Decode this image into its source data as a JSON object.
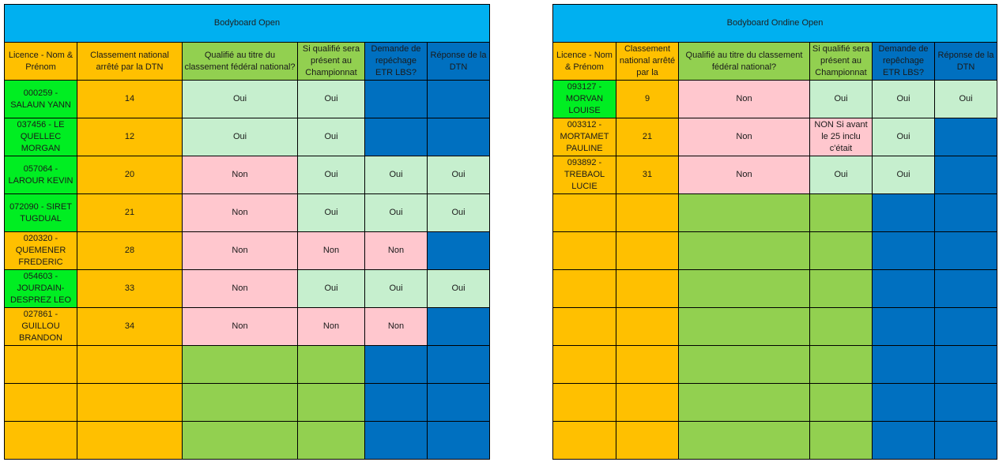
{
  "left": {
    "title": "Bodyboard Open",
    "headers": [
      "Licence - Nom & Prénom",
      "Classement national arrêté par la DTN",
      "Qualifié au titre du classement fédéral national?",
      "Si qualifié sera présent au Championnat",
      "Demande de repéchage ETR LBS?",
      "Réponse de la DTN"
    ],
    "rows": [
      {
        "licence": "000259 - SALAUN YANN",
        "rank": "14",
        "qualified": "Oui",
        "present": "Oui",
        "repechage": "",
        "response": ""
      },
      {
        "licence": "037456 - LE QUELLEC MORGAN",
        "rank": "12",
        "qualified": "Oui",
        "present": "Oui",
        "repechage": "",
        "response": ""
      },
      {
        "licence": "057064 - LAROUR KEVIN",
        "rank": "20",
        "qualified": "Non",
        "present": "Oui",
        "repechage": "Oui",
        "response": "Oui"
      },
      {
        "licence": "072090 - SIRET TUGDUAL",
        "rank": "21",
        "qualified": "Non",
        "present": "Oui",
        "repechage": "Oui",
        "response": "Oui"
      },
      {
        "licence": "020320 - QUEMENER FREDERIC",
        "rank": "28",
        "qualified": "Non",
        "present": "Non",
        "repechage": "Non",
        "response": ""
      },
      {
        "licence": "054603 - JOURDAIN-DESPREZ LEO",
        "rank": "33",
        "qualified": "Non",
        "present": "Oui",
        "repechage": "Oui",
        "response": "Oui"
      },
      {
        "licence": "027861 - GUILLOU BRANDON",
        "rank": "34",
        "qualified": "Non",
        "present": "Non",
        "repechage": "Non",
        "response": ""
      }
    ]
  },
  "right": {
    "title": "Bodyboard Ondine Open",
    "headers": [
      "Licence - Nom & Prénom",
      "Classement national arrêté par la",
      "Qualifié au titre du classement fédéral national?",
      "Si qualifié sera présent au Championnat",
      "Demande de repêchage ETR LBS?",
      "Réponse de la DTN"
    ],
    "rows": [
      {
        "licence": "093127 - MORVAN LOUISE",
        "rank": "9",
        "qualified": "Non",
        "present": "Oui",
        "repechage": "Oui",
        "response": "Oui"
      },
      {
        "licence": "003312 - MORTAMET PAULINE",
        "rank": "21",
        "qualified": "Non",
        "present": "NON Si avant le 25 inclu c'était",
        "repechage": "Oui",
        "response": ""
      },
      {
        "licence": "093892 - TREBAOL LUCIE",
        "rank": "31",
        "qualified": "Non",
        "present": "Oui",
        "repechage": "Oui",
        "response": ""
      }
    ]
  },
  "colors": {
    "title": "#00b0f0",
    "orange": "#ffc000",
    "lime": "#92d050",
    "blue": "#0070c0",
    "bright_green": "#00ee22",
    "mint": "#c6efce",
    "pink": "#ffc7ce"
  }
}
